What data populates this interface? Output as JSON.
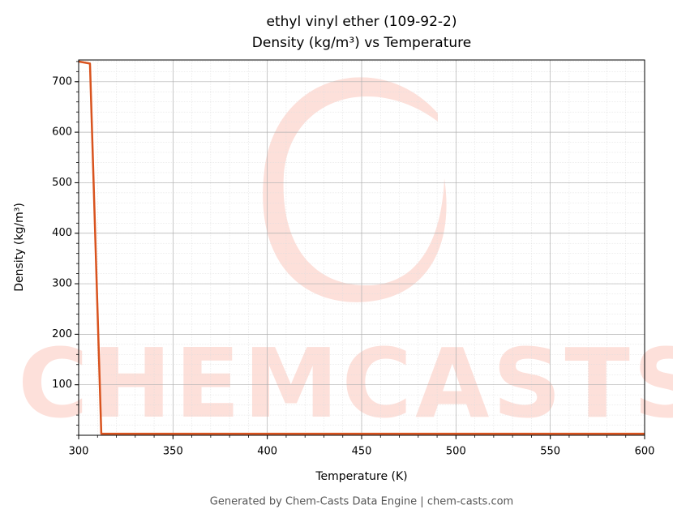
{
  "chart_data": {
    "type": "line",
    "title": "ethyl vinyl ether (109-92-2)",
    "subtitle": "Density (kg/m³) vs Temperature",
    "x_label": "Temperature (K)",
    "y_label": "Density (kg/m³)",
    "footer": "Generated by Chem-Casts Data Engine | chem-casts.com",
    "watermark": "CHEMCASTS",
    "x": [
      300,
      306,
      312,
      350,
      400,
      450,
      500,
      550,
      600
    ],
    "series": [
      {
        "name": "Density",
        "color": "#d9531e",
        "values": [
          740,
          736,
          3,
          3,
          3,
          3,
          3,
          3,
          3
        ]
      }
    ],
    "xlim": [
      300,
      600
    ],
    "xticks": [
      300,
      350,
      400,
      450,
      500,
      550,
      600
    ],
    "ylim": [
      0,
      743
    ],
    "yticks": [
      100,
      200,
      300,
      400,
      500,
      600,
      700
    ],
    "grid": true,
    "minor_grid": true
  }
}
